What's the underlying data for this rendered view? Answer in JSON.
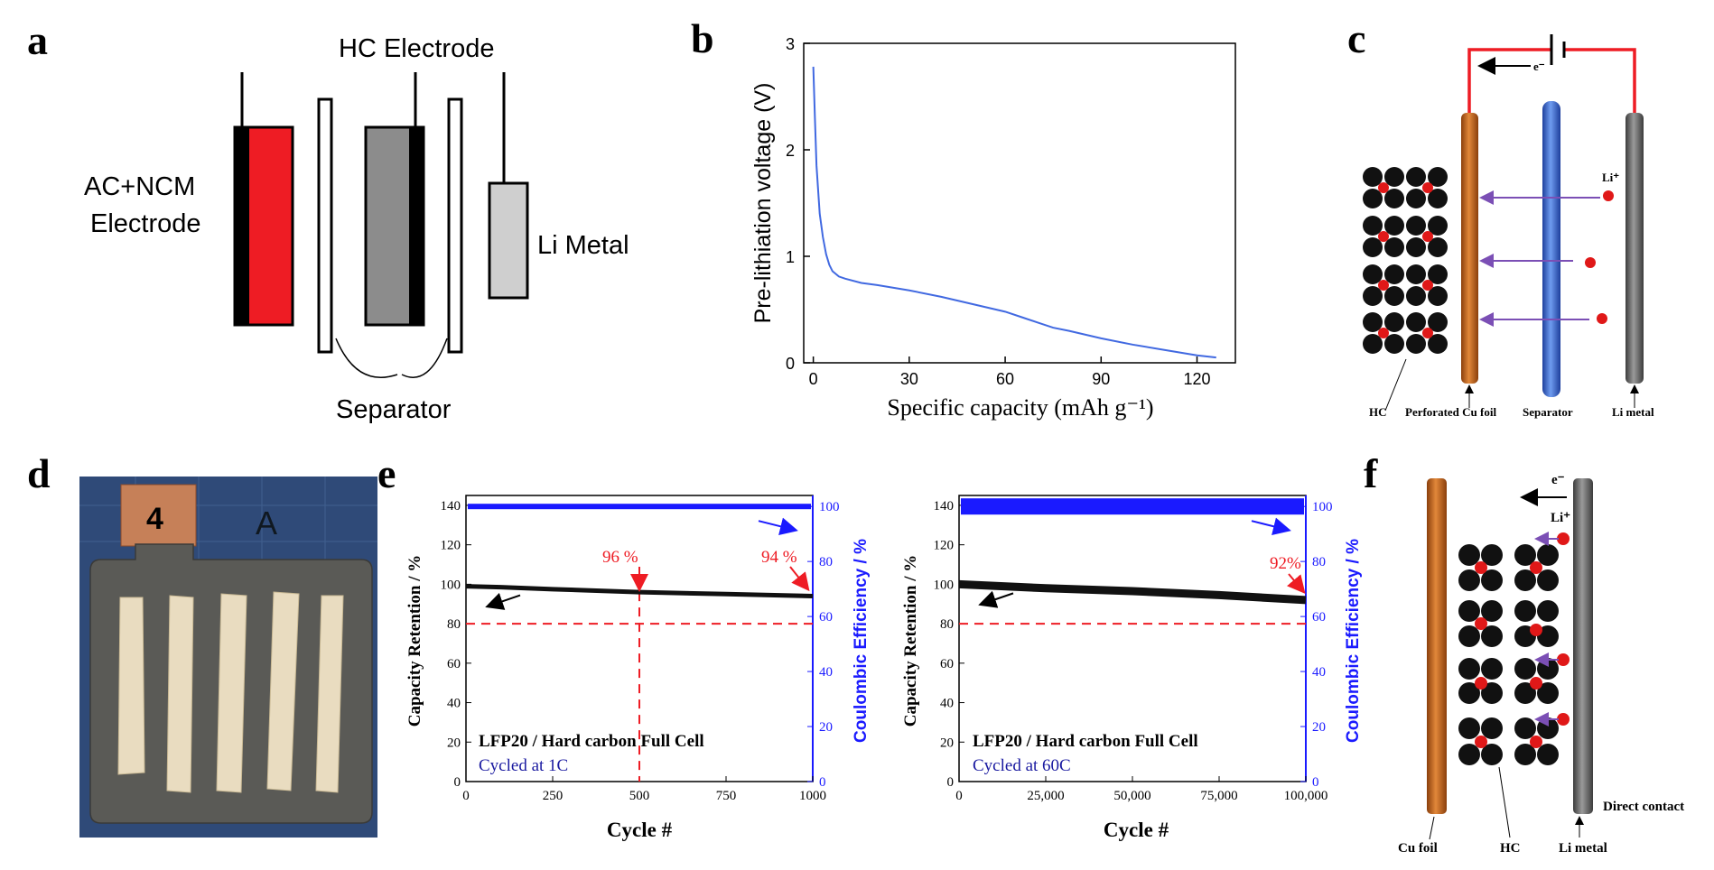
{
  "panel_letters": {
    "a": "a",
    "b": "b",
    "c": "c",
    "d": "d",
    "e": "e",
    "f": "f"
  },
  "panel_a": {
    "hc_electrode": "HC Electrode",
    "ac_ncm_line1": "AC+NCM",
    "ac_ncm_line2": "Electrode",
    "li_metal": "Li Metal",
    "separator": "Separator"
  },
  "panel_b": {
    "xlabel": "Specific capacity (mAh g⁻¹)",
    "ylabel": "Pre-lithiation voltage (V)",
    "xticks": [
      "0",
      "30",
      "60",
      "90",
      "120"
    ],
    "yticks": [
      "0",
      "1",
      "2",
      "3"
    ]
  },
  "panel_c": {
    "electron": "e⁻",
    "li_ion": "Li⁺",
    "hc": "HC",
    "cu_foil": "Perforated Cu foil",
    "separator": "Separator",
    "li_metal": "Li metal"
  },
  "panel_d": {
    "tab_number": "4",
    "tab_letter": "A"
  },
  "panel_e": {
    "left": {
      "ylabel_left": "Capacity Retention / %",
      "ylabel_right": "Coulombic Efficiency / %",
      "xlabel": "Cycle #",
      "xticks": [
        "0",
        "250",
        "500",
        "750",
        "1000"
      ],
      "yticks_left": [
        "0",
        "20",
        "40",
        "60",
        "80",
        "100",
        "120",
        "140"
      ],
      "yticks_right": [
        "0",
        "20",
        "40",
        "60",
        "80",
        "100"
      ],
      "cell": "LFP20 / Hard carbon Full Cell",
      "rate": "Cycled at 1C",
      "ann1": "96 %",
      "ann2": "94 %"
    },
    "right": {
      "ylabel_left": "Capacity Retention / %",
      "ylabel_right": "Coulombic Efficiency / %",
      "xlabel": "Cycle #",
      "xticks": [
        "0",
        "25,000",
        "50,000",
        "75,000",
        "100,000"
      ],
      "yticks_left": [
        "0",
        "20",
        "40",
        "60",
        "80",
        "100",
        "120",
        "140"
      ],
      "yticks_right": [
        "0",
        "20",
        "40",
        "60",
        "80",
        "100"
      ],
      "cell": "LFP20 / Hard carbon Full Cell",
      "rate": "Cycled at 60C",
      "ann1": "92%"
    }
  },
  "panel_f": {
    "electron": "e⁻",
    "li_ion": "Li⁺",
    "cu_foil": "Cu foil",
    "hc": "HC",
    "li_metal": "Li metal",
    "direct_contact": "Direct contact"
  },
  "colors": {
    "red": "#ee1c24",
    "blue_curve": "#4169e1",
    "ce_blue": "#1a1aff",
    "copper": "#c8651b",
    "separator_blue": "#3a6fd8",
    "li_gray": "#707070",
    "purple": "#7b4fb5"
  },
  "chart_data": [
    {
      "panel": "b",
      "type": "line",
      "xlabel": "Specific capacity (mAh g⁻¹)",
      "ylabel": "Pre-lithiation voltage (V)",
      "xlim": [
        -3,
        132
      ],
      "ylim": [
        0,
        3
      ],
      "series": [
        {
          "x": [
            0,
            0.5,
            1,
            2,
            3,
            4,
            5,
            6,
            8,
            10,
            15,
            20,
            30,
            40,
            50,
            60,
            65,
            70,
            75,
            80,
            90,
            100,
            110,
            120,
            126
          ],
          "y": [
            2.78,
            2.3,
            1.85,
            1.4,
            1.18,
            1.02,
            0.92,
            0.86,
            0.81,
            0.79,
            0.75,
            0.73,
            0.68,
            0.62,
            0.55,
            0.48,
            0.43,
            0.38,
            0.33,
            0.3,
            0.23,
            0.17,
            0.12,
            0.07,
            0.05
          ]
        }
      ]
    },
    {
      "panel": "e-left",
      "type": "scatter",
      "xlabel": "Cycle #",
      "xlim": [
        0,
        1000
      ],
      "ylim_left": [
        0,
        145
      ],
      "ylim_right": [
        0,
        104
      ],
      "series": [
        {
          "name": "Capacity Retention",
          "axis": "left",
          "x": [
            0,
            100,
            250,
            500,
            750,
            1000
          ],
          "y": [
            99,
            98.5,
            97.5,
            96,
            95,
            94
          ]
        },
        {
          "name": "Coulombic Efficiency",
          "axis": "right",
          "x": [
            0,
            1000
          ],
          "y": [
            100,
            100
          ]
        }
      ],
      "reference_line_y": 80,
      "reference_line_x": 500
    },
    {
      "panel": "e-right",
      "type": "scatter",
      "xlabel": "Cycle #",
      "xlim": [
        0,
        100000
      ],
      "ylim_left": [
        0,
        145
      ],
      "ylim_right": [
        0,
        104
      ],
      "series": [
        {
          "name": "Capacity Retention",
          "axis": "left",
          "x": [
            0,
            25000,
            50000,
            75000,
            100000
          ],
          "y": [
            100,
            98,
            96.5,
            94.5,
            92
          ]
        },
        {
          "name": "Coulombic Efficiency",
          "axis": "right",
          "x": [
            0,
            100000
          ],
          "y": [
            100,
            100
          ]
        }
      ],
      "reference_line_y": 80
    }
  ]
}
